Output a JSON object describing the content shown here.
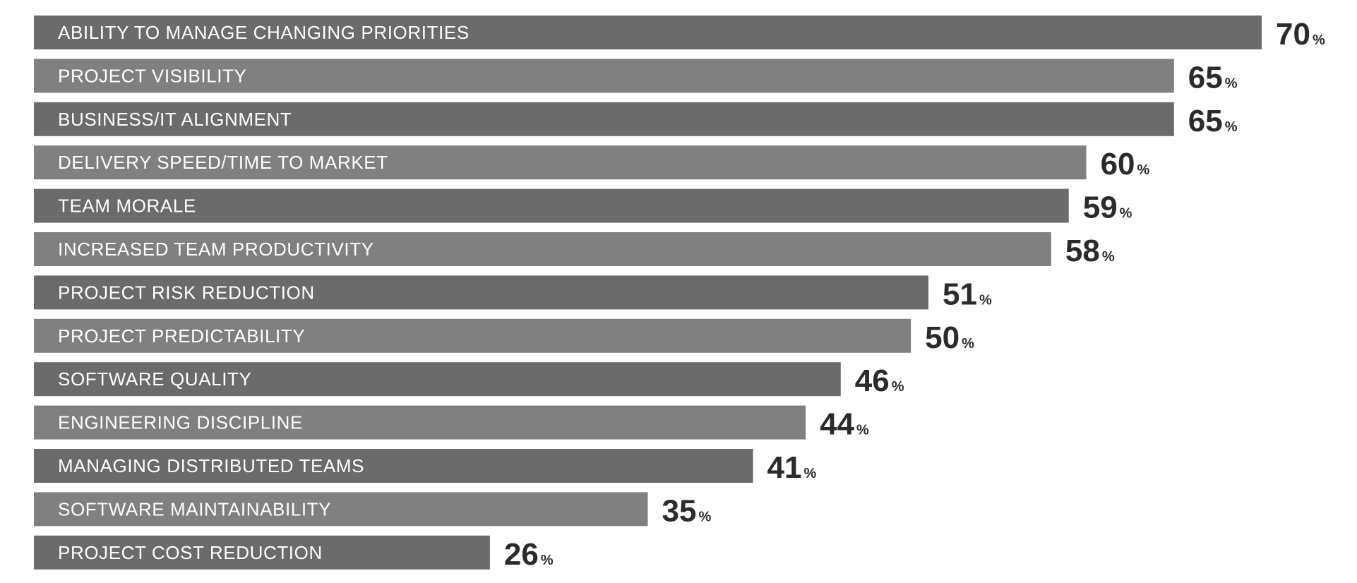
{
  "chart_data": {
    "type": "bar",
    "orientation": "horizontal",
    "categories": [
      "ABILITY TO MANAGE CHANGING PRIORITIES",
      "PROJECT VISIBILITY",
      "BUSINESS/IT ALIGNMENT",
      "DELIVERY SPEED/TIME TO MARKET",
      "TEAM MORALE",
      "INCREASED TEAM PRODUCTIVITY",
      "PROJECT RISK REDUCTION",
      "PROJECT PREDICTABILITY",
      "SOFTWARE QUALITY",
      "ENGINEERING DISCIPLINE",
      "MANAGING DISTRIBUTED TEAMS",
      "SOFTWARE MAINTAINABILITY",
      "PROJECT COST REDUCTION"
    ],
    "values": [
      70,
      65,
      65,
      60,
      59,
      58,
      51,
      50,
      46,
      44,
      41,
      35,
      26
    ],
    "value_suffix": "%",
    "xlim": [
      0,
      70
    ],
    "grid": false,
    "legend": "none",
    "colors": {
      "bar_dark": "#6b6b6b",
      "bar_light": "#808080",
      "label_text": "#ffffff",
      "value_text": "#2b2b2b"
    }
  }
}
